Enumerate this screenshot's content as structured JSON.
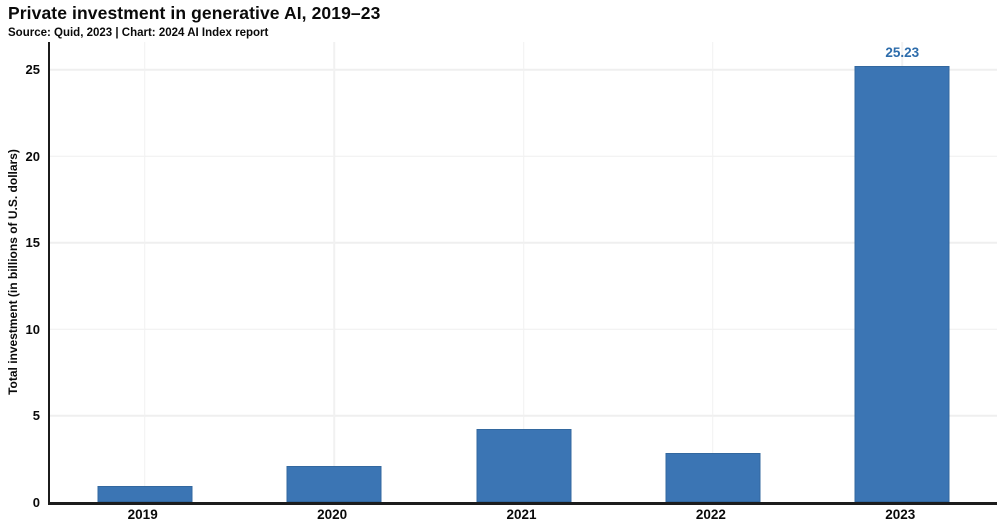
{
  "header": {
    "title": "Private investment in generative AI, 2019–23",
    "subtitle": "Source: Quid, 2023 | Chart: 2024 AI Index report"
  },
  "chart_data": {
    "type": "bar",
    "title": "Private investment in generative AI, 2019–23",
    "subtitle": "Source: Quid, 2023 | Chart: 2024 AI Index report",
    "categories": [
      "2019",
      "2020",
      "2021",
      "2022",
      "2023"
    ],
    "values": [
      0.9,
      2.1,
      4.2,
      2.85,
      25.23
    ],
    "annotations": [
      {
        "category": "2023",
        "text": "25.23"
      }
    ],
    "xlabel": "",
    "ylabel": "Total investment (in billions of U.S. dollars)",
    "yticks": [
      0,
      5,
      10,
      15,
      20,
      25
    ],
    "ylim": [
      0,
      26.6
    ],
    "grid": true,
    "legend": "none",
    "colors": {
      "bar": "#3b75b4",
      "bar_edge": "#33689f",
      "annotation": "#2d6cab",
      "axis": "#1c1c1c",
      "gridline_h": "#efefef",
      "gridline_v": "#f1f1f1",
      "text": "#0a0a0a"
    }
  }
}
